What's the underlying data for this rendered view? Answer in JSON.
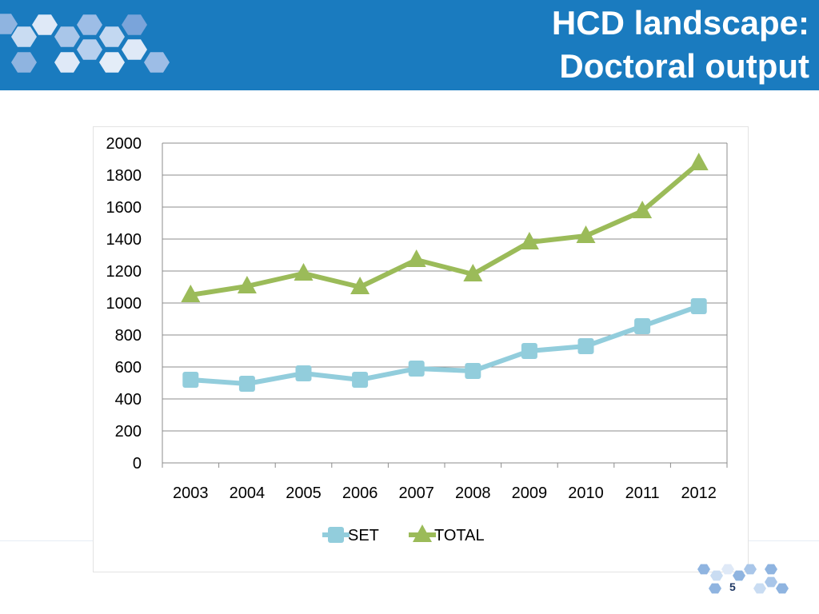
{
  "slide": {
    "title_line1": "HCD landscape:",
    "title_line2": "Doctoral output",
    "page_number": "5"
  },
  "colors": {
    "header_bg": "#1a7bbf",
    "set_series": "#92cddc",
    "total_series": "#9bbb59"
  },
  "chart_data": {
    "type": "line",
    "title": "",
    "xlabel": "",
    "ylabel": "",
    "categories": [
      "2003",
      "2004",
      "2005",
      "2006",
      "2007",
      "2008",
      "2009",
      "2010",
      "2011",
      "2012"
    ],
    "ylim": [
      0,
      2000
    ],
    "yticks": [
      0,
      200,
      400,
      600,
      800,
      1000,
      1200,
      1400,
      1600,
      1800,
      2000
    ],
    "grid": "horizontal",
    "legend_position": "bottom",
    "series": [
      {
        "name": "SET",
        "marker": "square",
        "color": "#92cddc",
        "values": [
          520,
          495,
          560,
          520,
          590,
          575,
          700,
          730,
          855,
          980
        ]
      },
      {
        "name": "TOTAL",
        "marker": "triangle",
        "color": "#9bbb59",
        "values": [
          1050,
          1105,
          1185,
          1100,
          1270,
          1180,
          1380,
          1420,
          1575,
          1875
        ]
      }
    ]
  }
}
